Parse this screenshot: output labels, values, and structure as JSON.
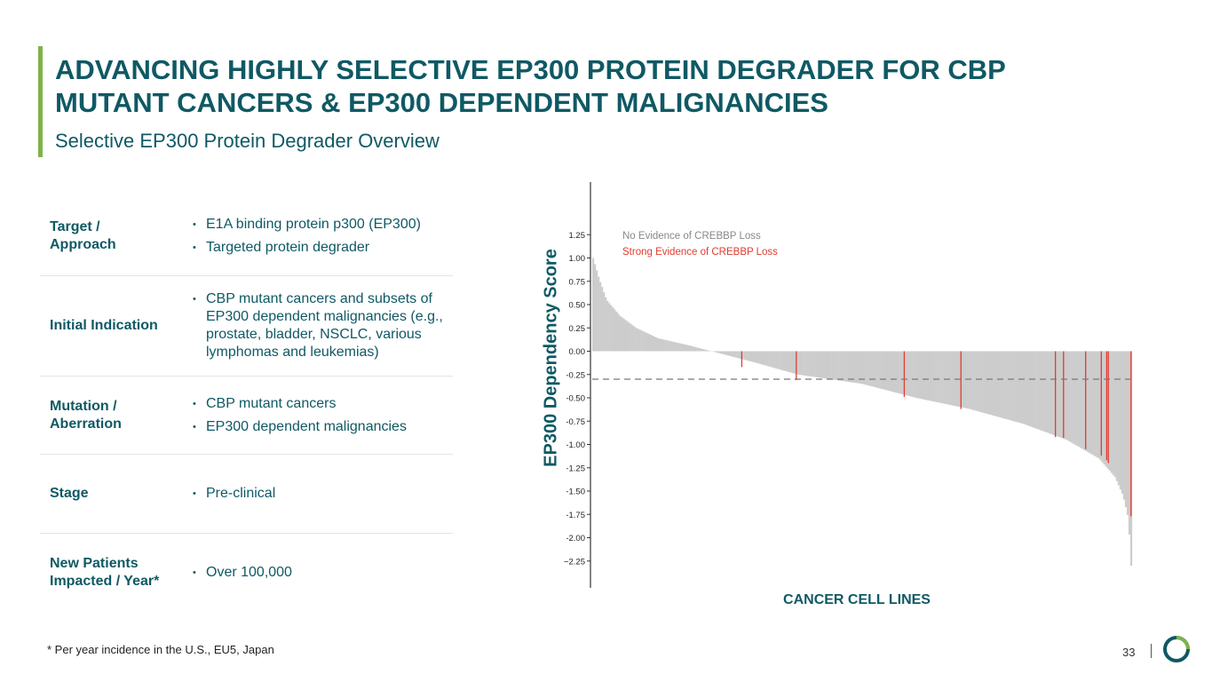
{
  "header": {
    "title_lines": [
      "ADVANCING HIGHLY SELECTIVE EP300 PROTEIN DEGRADER FOR CBP",
      "MUTANT CANCERS & EP300 DEPENDENT MALIGNANCIES"
    ],
    "subtitle": "Selective EP300 Protein Degrader Overview"
  },
  "table": {
    "rows": [
      {
        "label": [
          "Target /",
          "Approach"
        ],
        "items": [
          "E1A binding protein p300 (EP300)",
          "Targeted protein degrader"
        ]
      },
      {
        "label": [
          "Initial Indication"
        ],
        "items": [
          "CBP mutant cancers and subsets of EP300 dependent malignancies (e.g., prostate, bladder, NSCLC, various lymphomas and leukemias)"
        ]
      },
      {
        "label": [
          "Mutation /",
          "Aberration"
        ],
        "items": [
          "CBP mutant cancers",
          "EP300 dependent malignancies"
        ]
      },
      {
        "label": [
          "Stage"
        ],
        "items": [
          "Pre-clinical"
        ]
      },
      {
        "label": [
          "New Patients",
          "Impacted / Year*"
        ],
        "items": [
          "Over 100,000"
        ]
      }
    ]
  },
  "chart_data": {
    "type": "bar",
    "ylabel": "EP300 Dependency Score",
    "xlabel": "CANCER CELL LINES",
    "ylim": [
      -2.5,
      1.8
    ],
    "y_ticks": [
      {
        "value": 1.25,
        "label": "1.25"
      },
      {
        "value": 1.0,
        "label": "1.00"
      },
      {
        "value": 0.75,
        "label": "0.75"
      },
      {
        "value": 0.5,
        "label": "0.50"
      },
      {
        "value": 0.25,
        "label": "0.25"
      },
      {
        "value": 0.0,
        "label": "0.00"
      },
      {
        "value": -0.25,
        "label": "-0.25"
      },
      {
        "value": -0.5,
        "label": "-0.50"
      },
      {
        "value": -0.75,
        "label": "-0.75"
      },
      {
        "value": -1.0,
        "label": "-1.00"
      },
      {
        "value": -1.25,
        "label": "-1.25"
      },
      {
        "value": -1.5,
        "label": "-1.50"
      },
      {
        "value": -1.75,
        "label": "-1.75"
      },
      {
        "value": -2.0,
        "label": "-2.00"
      },
      {
        "value": -2.25,
        "label": "−2.25"
      }
    ],
    "reference_line": -0.3,
    "grid": false,
    "legend_position": "top-left",
    "series": [
      {
        "name": "No Evidence of CREBBP Loss",
        "color": "#cccccc",
        "legend_color": "#888888"
      },
      {
        "name": "Strong Evidence of CREBBP Loss",
        "color": "#e03c31",
        "legend_color": "#e03c31"
      }
    ],
    "profile": [
      {
        "rank": 0,
        "value": 1.0
      },
      {
        "rank": 0.01,
        "value": 0.8
      },
      {
        "rank": 0.025,
        "value": 0.55
      },
      {
        "rank": 0.05,
        "value": 0.38
      },
      {
        "rank": 0.08,
        "value": 0.25
      },
      {
        "rank": 0.12,
        "value": 0.14
      },
      {
        "rank": 0.18,
        "value": 0.06
      },
      {
        "rank": 0.22,
        "value": 0.0
      },
      {
        "rank": 0.3,
        "value": -0.12
      },
      {
        "rank": 0.38,
        "value": -0.25
      },
      {
        "rank": 0.5,
        "value": -0.35
      },
      {
        "rank": 0.6,
        "value": -0.5
      },
      {
        "rank": 0.7,
        "value": -0.62
      },
      {
        "rank": 0.8,
        "value": -0.78
      },
      {
        "rank": 0.88,
        "value": -0.95
      },
      {
        "rank": 0.94,
        "value": -1.15
      },
      {
        "rank": 0.97,
        "value": -1.35
      },
      {
        "rank": 0.985,
        "value": -1.55
      },
      {
        "rank": 0.995,
        "value": -1.8
      },
      {
        "rank": 1.0,
        "value": -2.3
      }
    ],
    "crebbp_loss_lines": [
      {
        "rank": 0.277,
        "value": -0.17
      },
      {
        "rank": 0.378,
        "value": -0.31
      },
      {
        "rank": 0.578,
        "value": -0.49
      },
      {
        "rank": 0.683,
        "value": -0.62
      },
      {
        "rank": 0.858,
        "value": -0.92
      },
      {
        "rank": 0.873,
        "value": -0.93
      },
      {
        "rank": 0.914,
        "value": -1.05
      },
      {
        "rank": 0.943,
        "value": -1.12
      },
      {
        "rank": 0.953,
        "value": -1.17
      },
      {
        "rank": 0.956,
        "value": -1.2
      },
      {
        "rank": 0.998,
        "value": -1.77
      }
    ]
  },
  "footer": {
    "footnote": "* Per year incidence in the U.S., EU5, Japan",
    "page_number": "33",
    "logo_colors": [
      "#0f5964",
      "#7fb24a"
    ]
  }
}
